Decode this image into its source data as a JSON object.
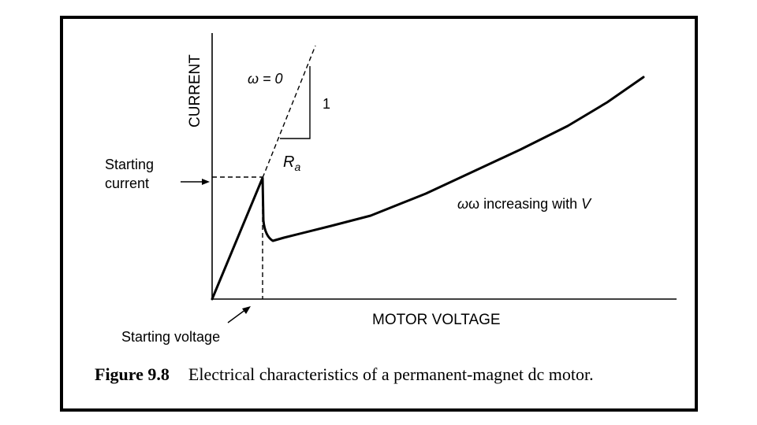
{
  "diagram": {
    "y_axis_label": "CURRENT",
    "x_axis_label": "MOTOR VOLTAGE",
    "stall_label": "ω = 0",
    "slope_rise": "1",
    "slope_resistance": "R",
    "slope_resistance_sub": "a",
    "starting_current_label_line1": "Starting",
    "starting_current_label_line2": "current",
    "starting_voltage_label": "Starting voltage",
    "curve_label_prefix": "ω increasing with ",
    "curve_label_var": "V"
  },
  "caption": {
    "number": "Figure 9.8",
    "text": "Electrical characteristics of a permanent-magnet dc motor."
  },
  "colors": {
    "ink": "#000000",
    "background": "#ffffff"
  }
}
